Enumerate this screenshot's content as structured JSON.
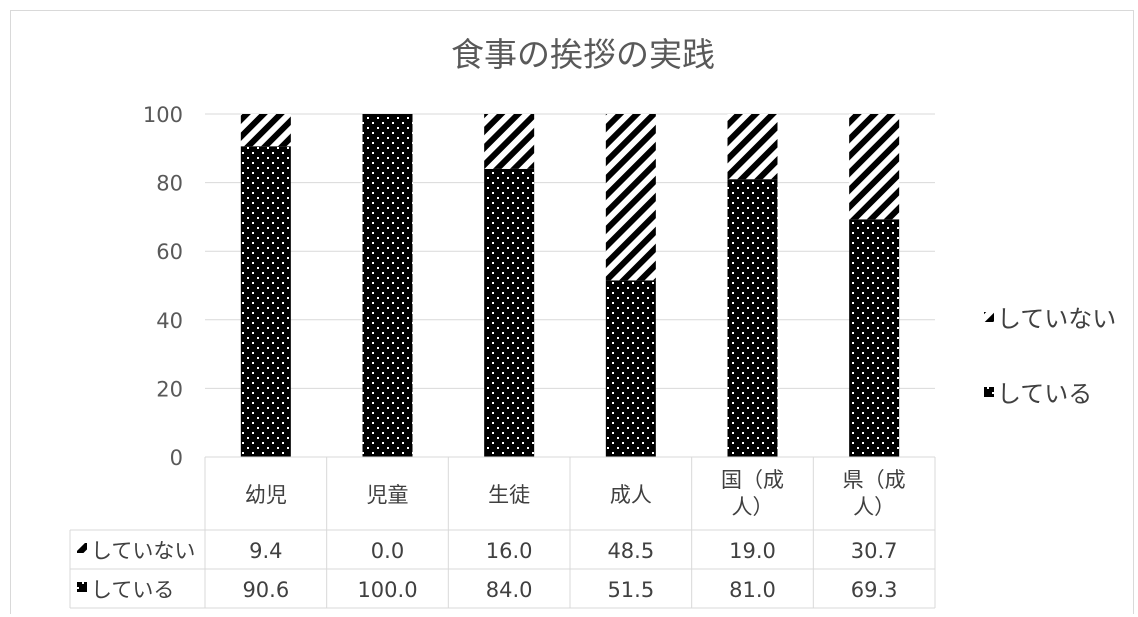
{
  "chart_data": {
    "type": "bar",
    "stacked": true,
    "title": "食事の挨拶の実践",
    "categories": [
      "幼児",
      "児童",
      "生徒",
      "成人",
      "国（成人）",
      "県（成人）"
    ],
    "category_lines": [
      [
        "幼児"
      ],
      [
        "児童"
      ],
      [
        "生徒"
      ],
      [
        "成人"
      ],
      [
        "国（成",
        "人）"
      ],
      [
        "県（成",
        "人）"
      ]
    ],
    "series": [
      {
        "name": "している",
        "values": [
          90.6,
          100.0,
          84.0,
          51.5,
          81.0,
          69.3
        ],
        "pattern": "dots",
        "color": "#000000"
      },
      {
        "name": "していない",
        "values": [
          9.4,
          0.0,
          16.0,
          48.5,
          19.0,
          30.7
        ],
        "pattern": "diagonal-stripes",
        "color": "#000000"
      }
    ],
    "data_table": {
      "rows": [
        {
          "label": "していない",
          "cells": [
            "9.4",
            "0.0",
            "16.0",
            "48.5",
            "19.0",
            "30.7"
          ]
        },
        {
          "label": "している",
          "cells": [
            "90.6",
            "100.0",
            "84.0",
            "51.5",
            "81.0",
            "69.3"
          ]
        }
      ]
    },
    "ylim": [
      0,
      100
    ],
    "yticks": [
      "0",
      "20",
      "40",
      "60",
      "80",
      "100"
    ],
    "xlabel": "",
    "ylabel": "",
    "grid": true,
    "legend": {
      "position": "right",
      "order": [
        "していない",
        "している"
      ]
    },
    "gridline_color": "#d9d9d9"
  }
}
